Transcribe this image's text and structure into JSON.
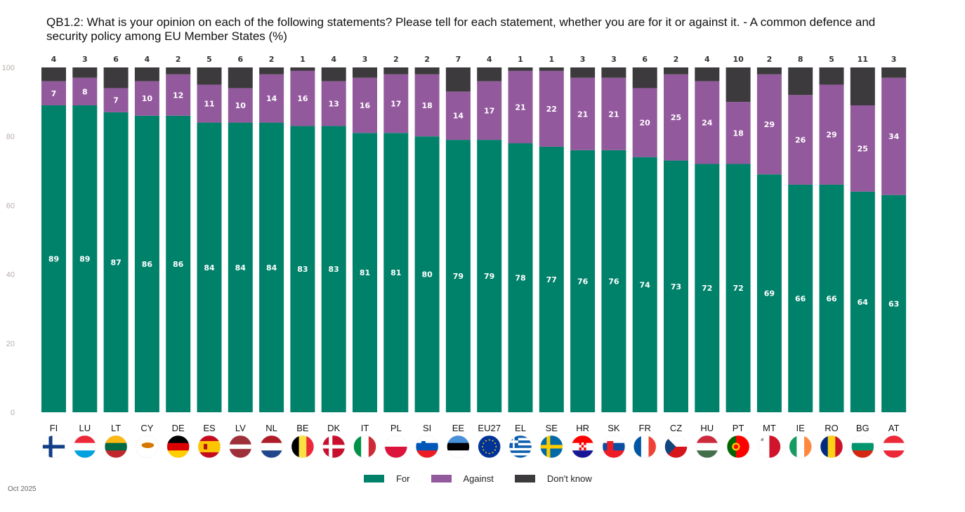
{
  "title": "QB1.2: What is your opinion on each of the following statements? Please tell for each statement, whether you are for it or against it. - A common defence and security policy among EU Member States (%)",
  "footer": "Oct 2025",
  "colors": {
    "for": "#00816a",
    "against": "#93599d",
    "dont_know": "#3c3a3d"
  },
  "chart_data": {
    "type": "bar",
    "stacked": true,
    "title": "QB1.2: What is your opinion on each of the following statements? Please tell for each statement, whether you are for it or against it. - A common defence and security policy among EU Member States (%)",
    "xlabel": "",
    "ylabel": "",
    "ylim": [
      0,
      100
    ],
    "yticks": [
      0,
      20,
      40,
      60,
      80,
      100
    ],
    "grid": false,
    "legend_position": "bottom",
    "categories": [
      "FI",
      "LU",
      "LT",
      "CY",
      "DE",
      "ES",
      "LV",
      "NL",
      "BE",
      "DK",
      "IT",
      "PL",
      "SI",
      "EE",
      "EU27",
      "EL",
      "SE",
      "HR",
      "SK",
      "FR",
      "CZ",
      "HU",
      "PT",
      "MT",
      "IE",
      "RO",
      "BG",
      "AT"
    ],
    "series": [
      {
        "name": "For",
        "values": [
          89,
          89,
          87,
          86,
          86,
          84,
          84,
          84,
          83,
          83,
          81,
          81,
          80,
          79,
          79,
          78,
          77,
          76,
          76,
          74,
          73,
          72,
          72,
          69,
          66,
          66,
          64,
          63
        ]
      },
      {
        "name": "Against",
        "values": [
          7,
          8,
          7,
          10,
          12,
          11,
          10,
          14,
          16,
          13,
          16,
          17,
          18,
          14,
          17,
          21,
          22,
          21,
          21,
          20,
          25,
          24,
          18,
          29,
          26,
          29,
          25,
          34
        ]
      },
      {
        "name": "Don't know",
        "values": [
          4,
          3,
          6,
          4,
          2,
          5,
          6,
          2,
          1,
          4,
          3,
          2,
          2,
          7,
          4,
          1,
          1,
          3,
          3,
          6,
          2,
          4,
          10,
          2,
          8,
          5,
          11,
          3
        ]
      }
    ]
  },
  "legend": [
    {
      "label": "For",
      "color": "#00816a"
    },
    {
      "label": "Against",
      "color": "#93599d"
    },
    {
      "label": "Don't know",
      "color": "#3c3a3d"
    }
  ],
  "flags": {
    "FI": "finland-flag",
    "LU": "luxembourg-flag",
    "LT": "lithuania-flag",
    "CY": "cyprus-flag",
    "DE": "germany-flag",
    "ES": "spain-flag",
    "LV": "latvia-flag",
    "NL": "netherlands-flag",
    "BE": "belgium-flag",
    "DK": "denmark-flag",
    "IT": "italy-flag",
    "PL": "poland-flag",
    "SI": "slovenia-flag",
    "EE": "estonia-flag",
    "EU27": "eu-flag",
    "EL": "greece-flag",
    "SE": "sweden-flag",
    "HR": "croatia-flag",
    "SK": "slovakia-flag",
    "FR": "france-flag",
    "CZ": "czechia-flag",
    "HU": "hungary-flag",
    "PT": "portugal-flag",
    "MT": "malta-flag",
    "IE": "ireland-flag",
    "RO": "romania-flag",
    "BG": "bulgaria-flag",
    "AT": "austria-flag"
  }
}
